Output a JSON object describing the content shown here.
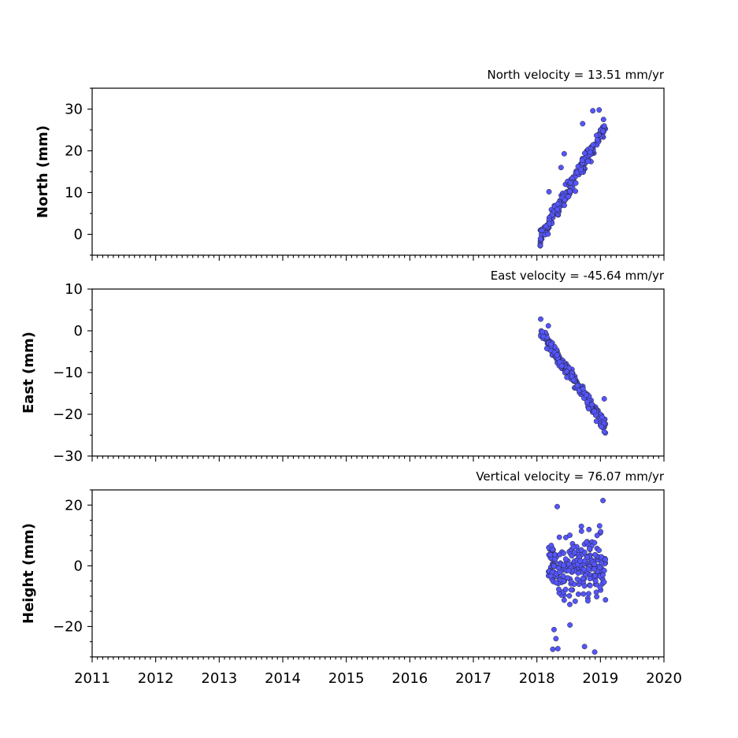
{
  "chart_data": [
    {
      "type": "scatter",
      "title": "North velocity = 13.51 mm/yr",
      "ylabel": "North (mm)",
      "xlabel": "",
      "xlim": [
        2011,
        2020
      ],
      "ylim": [
        -5,
        35
      ],
      "yticks": [
        "0",
        "10",
        "20",
        "30"
      ],
      "ytick_values": [
        0,
        10,
        20,
        30
      ],
      "xtick_labels_shown": false,
      "marker_color": "#5555ff",
      "points_summary": {
        "x_start": 2018.05,
        "x_end": 2019.08,
        "y_start": -1,
        "y_end": 26,
        "noise": 1.5
      },
      "outliers": [
        [
          2018.19,
          10.2
        ],
        [
          2018.43,
          19.3
        ],
        [
          2018.38,
          16.0
        ],
        [
          2018.72,
          26.5
        ],
        [
          2018.88,
          29.6
        ],
        [
          2018.98,
          29.8
        ]
      ]
    },
    {
      "type": "scatter",
      "title": "East velocity = -45.64 mm/yr",
      "ylabel": "East (mm)",
      "xlabel": "",
      "xlim": [
        2011,
        2020
      ],
      "ylim": [
        -30,
        10
      ],
      "yticks": [
        "10",
        "0",
        "−10",
        "−20",
        "−30"
      ],
      "ytick_values": [
        10,
        0,
        -10,
        -20,
        -30
      ],
      "xtick_labels_shown": false,
      "marker_color": "#5555ff",
      "points_summary": {
        "x_start": 2018.05,
        "x_end": 2019.08,
        "y_start": 0,
        "y_end": -23,
        "noise": 1.2
      },
      "outliers": [
        [
          2018.06,
          2.8
        ],
        [
          2018.18,
          1.2
        ],
        [
          2019.06,
          -24.2
        ],
        [
          2019.06,
          -16.3
        ]
      ]
    },
    {
      "type": "scatter",
      "title": "Vertical velocity = 76.07 mm/yr",
      "ylabel": "Height (mm)",
      "xlabel": "",
      "xlim": [
        2011,
        2020
      ],
      "ylim": [
        -30,
        25
      ],
      "yticks": [
        "20",
        "0",
        "−20"
      ],
      "ytick_values": [
        20,
        0,
        -20
      ],
      "xtick_labels_shown": true,
      "xticks": [
        "2011",
        "2012",
        "2013",
        "2014",
        "2015",
        "2016",
        "2017",
        "2018",
        "2019",
        "2020"
      ],
      "xtick_values": [
        2011,
        2012,
        2013,
        2014,
        2015,
        2016,
        2017,
        2018,
        2019,
        2020
      ],
      "marker_color": "#5555ff",
      "points_summary": {
        "x_start": 2018.18,
        "x_end": 2019.08,
        "y_center": 0,
        "spread": 7
      },
      "outliers": [
        [
          2018.32,
          19.5
        ],
        [
          2019.04,
          21.5
        ],
        [
          2018.27,
          -21.0
        ],
        [
          2018.25,
          -27.5
        ],
        [
          2018.33,
          -27.3
        ],
        [
          2018.52,
          -19.5
        ],
        [
          2018.75,
          -26.6
        ],
        [
          2018.91,
          -28.4
        ],
        [
          2018.3,
          -24.0
        ],
        [
          2018.7,
          13.0
        ]
      ]
    }
  ]
}
